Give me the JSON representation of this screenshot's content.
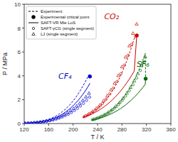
{
  "chart_data": {
    "type": "line",
    "x_label": "T / K",
    "y_label": "P / MPa",
    "xlim": [
      120,
      360
    ],
    "ylim": [
      0,
      10
    ],
    "xticks": [
      120,
      160,
      200,
      240,
      280,
      320,
      360
    ],
    "yticks": [
      0,
      2,
      4,
      6,
      8,
      10
    ],
    "grid": false,
    "legend": "upper left",
    "annotations": [
      {
        "text": "CF₄",
        "x": 176,
        "y": 3.6,
        "color": "#0000cc"
      },
      {
        "text": "CO₂",
        "x": 251,
        "y": 8.6,
        "color": "#cc0000"
      },
      {
        "text": "SF₆",
        "x": 304,
        "y": 4.6,
        "color": "#006600"
      }
    ],
    "series": [
      {
        "name": "Experiment",
        "type": "line",
        "line_style": "dashed",
        "color": "#0000cc",
        "x": [
          120,
          122,
          124,
          126,
          128,
          130,
          132,
          134,
          136,
          138,
          140,
          142,
          144,
          146,
          148,
          150,
          152,
          154,
          156,
          158,
          160,
          162,
          164,
          166,
          168,
          170,
          172,
          174,
          176,
          178,
          180,
          182,
          184,
          186,
          188,
          190,
          192,
          194,
          196,
          198,
          200,
          202,
          204,
          206,
          208,
          210,
          212,
          214,
          216,
          218,
          220,
          222,
          224,
          226,
          227.5
        ],
        "values": [
          0.026,
          0.03,
          0.035,
          0.041,
          0.047,
          0.055,
          0.063,
          0.073,
          0.084,
          0.096,
          0.11,
          0.125,
          0.142,
          0.161,
          0.182,
          0.205,
          0.23,
          0.258,
          0.288,
          0.321,
          0.357,
          0.395,
          0.437,
          0.482,
          0.53,
          0.582,
          0.637,
          0.697,
          0.76,
          0.827,
          0.899,
          0.975,
          1.056,
          1.142,
          1.233,
          1.329,
          1.431,
          1.538,
          1.652,
          1.771,
          1.897,
          2.029,
          2.168,
          2.313,
          2.465,
          2.623,
          2.787,
          2.958,
          3.135,
          3.318,
          3.507,
          3.7,
          3.898,
          4.1,
          3.95
        ]
      },
      {
        "name": "Experimental critical point",
        "type": "scatter",
        "marker": "circle",
        "color": "#0000cc",
        "x": [
          227.5
        ],
        "values": [
          3.95
        ]
      },
      {
        "name": "SAFT-VR Mie LoS",
        "type": "line",
        "line_style": "solid",
        "color": "#0000cc",
        "x": [
          120,
          124,
          128,
          132,
          136,
          140,
          144,
          148,
          152,
          156,
          160,
          164,
          168,
          172,
          176,
          180,
          184,
          188,
          192,
          196,
          200,
          204,
          208,
          212,
          216,
          220,
          224,
          227.5
        ],
        "values": [
          0.023,
          0.031,
          0.042,
          0.055,
          0.072,
          0.093,
          0.119,
          0.15,
          0.188,
          0.233,
          0.286,
          0.349,
          0.422,
          0.506,
          0.602,
          0.712,
          0.836,
          0.975,
          1.13,
          1.302,
          1.492,
          1.701,
          1.929,
          2.178,
          2.449,
          2.742,
          3.059,
          3.38
        ]
      },
      {
        "name": "SAFT-γCG (single segment)",
        "type": "scatter",
        "marker": "open-circle",
        "color": "#0000cc",
        "x": [
          122,
          127,
          132,
          137,
          142,
          147,
          152,
          157,
          162,
          167,
          172,
          177,
          182,
          187,
          192,
          197,
          202,
          207,
          212,
          217,
          222,
          227
        ],
        "values": [
          0.028,
          0.038,
          0.052,
          0.069,
          0.091,
          0.118,
          0.151,
          0.192,
          0.241,
          0.299,
          0.369,
          0.45,
          0.545,
          0.655,
          0.781,
          0.924,
          1.086,
          1.267,
          1.469,
          1.694,
          1.942,
          2.215
        ]
      },
      {
        "name": "LJ (single segment)",
        "type": "scatter",
        "marker": "open-triangle",
        "color": "#0000cc",
        "x": [
          121,
          126,
          131,
          136,
          141,
          146,
          151,
          156,
          161,
          166,
          171,
          176,
          181,
          186,
          191,
          196,
          201,
          206,
          211,
          216,
          221,
          226
        ],
        "values": [
          0.032,
          0.045,
          0.061,
          0.082,
          0.108,
          0.141,
          0.181,
          0.23,
          0.289,
          0.359,
          0.441,
          0.537,
          0.649,
          0.778,
          0.924,
          1.09,
          1.275,
          1.481,
          1.71,
          1.963,
          2.241,
          2.545
        ]
      },
      {
        "name": "Experiment",
        "type": "line",
        "line_style": "dashed",
        "color": "#cc0000",
        "x": [
          216,
          218,
          220,
          222,
          224,
          226,
          228,
          230,
          232,
          234,
          236,
          238,
          240,
          242,
          244,
          246,
          248,
          250,
          252,
          254,
          256,
          258,
          260,
          262,
          264,
          266,
          268,
          270,
          272,
          274,
          276,
          278,
          280,
          282,
          284,
          286,
          288,
          290,
          292,
          294,
          296,
          298,
          300,
          302,
          304.2
        ],
        "values": [
          0.518,
          0.561,
          0.607,
          0.656,
          0.708,
          0.763,
          0.822,
          0.884,
          0.951,
          1.021,
          1.096,
          1.175,
          1.259,
          1.348,
          1.442,
          1.541,
          1.645,
          1.755,
          1.871,
          1.994,
          2.123,
          2.259,
          2.402,
          2.552,
          2.71,
          2.875,
          3.049,
          3.231,
          3.421,
          3.621,
          3.829,
          4.047,
          4.274,
          4.511,
          4.758,
          5.015,
          5.283,
          5.562,
          5.852,
          6.154,
          6.467,
          6.792,
          7.13,
          7.258,
          7.38
        ]
      },
      {
        "name": "Experimental critical point",
        "type": "scatter",
        "marker": "circle",
        "color": "#cc0000",
        "x": [
          304.2
        ],
        "values": [
          7.38
        ]
      },
      {
        "name": "SAFT-VR Mie LoS",
        "type": "line",
        "line_style": "solid",
        "color": "#cc0000",
        "x": [
          216,
          220,
          224,
          228,
          232,
          236,
          240,
          244,
          248,
          252,
          256,
          260,
          264,
          268,
          272,
          276,
          280,
          284,
          288,
          292,
          296,
          300,
          304.2
        ],
        "values": [
          0.49,
          0.562,
          0.641,
          0.729,
          0.825,
          0.93,
          1.045,
          1.17,
          1.306,
          1.454,
          1.614,
          1.787,
          1.973,
          2.174,
          2.39,
          2.622,
          2.87,
          3.136,
          3.421,
          3.725,
          4.049,
          4.396,
          7.38
        ]
      },
      {
        "name": "SAFT-γCG (single segment)",
        "type": "scatter",
        "marker": "open-circle",
        "color": "#cc0000",
        "x": [
          218,
          224,
          230,
          236,
          242,
          248,
          254,
          260,
          266,
          272,
          278,
          284,
          290,
          296,
          302
        ],
        "values": [
          0.57,
          0.72,
          0.9,
          1.12,
          1.38,
          1.69,
          2.05,
          2.48,
          2.97,
          3.53,
          4.17,
          4.9,
          5.72,
          6.65,
          7.3
        ]
      },
      {
        "name": "LJ (single segment)",
        "type": "scatter",
        "marker": "open-triangle",
        "color": "#cc0000",
        "x": [
          220,
          226,
          232,
          238,
          244,
          250,
          256,
          262,
          268,
          274,
          280,
          286,
          292,
          298,
          304
        ],
        "values": [
          0.65,
          0.82,
          1.02,
          1.27,
          1.56,
          1.92,
          2.34,
          2.83,
          3.39,
          4.03,
          4.76,
          5.58,
          6.52,
          7.57,
          8.35
        ]
      },
      {
        "name": "Experiment",
        "type": "line",
        "line_style": "dashed",
        "color": "#006600",
        "x": [
          230,
          232,
          234,
          236,
          238,
          240,
          242,
          244,
          246,
          248,
          250,
          252,
          254,
          256,
          258,
          260,
          262,
          264,
          266,
          268,
          270,
          272,
          274,
          276,
          278,
          280,
          282,
          284,
          286,
          288,
          290,
          292,
          294,
          296,
          298,
          300,
          302,
          304,
          306,
          308,
          310,
          312,
          314,
          316,
          318,
          318.7
        ],
        "values": [
          0.296,
          0.324,
          0.355,
          0.387,
          0.422,
          0.46,
          0.5,
          0.543,
          0.589,
          0.638,
          0.691,
          0.747,
          0.807,
          0.87,
          0.938,
          1.01,
          1.086,
          1.167,
          1.252,
          1.343,
          1.438,
          1.539,
          1.646,
          1.758,
          1.877,
          2.001,
          2.132,
          2.27,
          2.415,
          2.567,
          2.727,
          2.894,
          3.069,
          3.253,
          3.445,
          3.645,
          3.855,
          4.073,
          4.301,
          4.538,
          4.785,
          5.042,
          5.309,
          5.587,
          5.875,
          3.76
        ]
      },
      {
        "name": "Experimental critical point",
        "type": "scatter",
        "marker": "circle",
        "color": "#006600",
        "x": [
          318.7
        ],
        "values": [
          3.76
        ]
      },
      {
        "name": "SAFT-VR Mie LoS",
        "type": "line",
        "line_style": "solid",
        "color": "#006600",
        "x": [
          230,
          234,
          238,
          242,
          246,
          250,
          254,
          258,
          262,
          266,
          270,
          274,
          278,
          282,
          286,
          290,
          294,
          298,
          302,
          306,
          310,
          314,
          318,
          318.7
        ],
        "values": [
          0.278,
          0.322,
          0.371,
          0.426,
          0.487,
          0.555,
          0.631,
          0.714,
          0.806,
          0.907,
          1.017,
          1.137,
          1.268,
          1.41,
          1.563,
          1.729,
          1.907,
          2.099,
          2.305,
          2.526,
          2.763,
          3.016,
          3.287,
          3.76
        ]
      },
      {
        "name": "SAFT-γCG (single segment)",
        "type": "scatter",
        "marker": "open-circle",
        "color": "#006600",
        "x": [
          232,
          238,
          244,
          250,
          256,
          262,
          268,
          274,
          280,
          286,
          292,
          298,
          304,
          310,
          316
        ],
        "values": [
          0.328,
          0.422,
          0.538,
          0.681,
          0.853,
          1.059,
          1.303,
          1.589,
          1.922,
          2.307,
          2.749,
          3.252,
          3.821,
          4.458,
          5.165
        ]
      },
      {
        "name": "LJ (single segment)",
        "type": "scatter",
        "marker": "open-triangle",
        "color": "#006600",
        "x": [
          234,
          240,
          246,
          252,
          258,
          264,
          270,
          276,
          282,
          288,
          294,
          300,
          306,
          312,
          318
        ],
        "values": [
          0.362,
          0.47,
          0.601,
          0.761,
          0.953,
          1.183,
          1.455,
          1.774,
          2.143,
          2.566,
          3.046,
          3.587,
          4.191,
          4.86,
          5.596
        ]
      }
    ]
  }
}
